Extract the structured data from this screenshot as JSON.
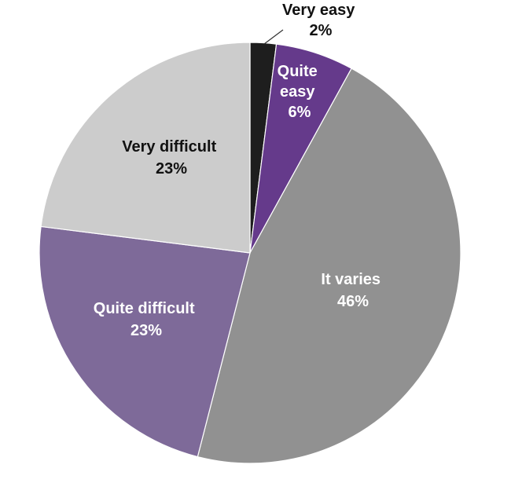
{
  "chart_data": {
    "type": "pie",
    "title": "",
    "slices": [
      {
        "label": "Very easy",
        "value": 2,
        "value_text": "2%",
        "color": "#1e1e1e"
      },
      {
        "label": "Quite easy",
        "value": 6,
        "value_text": "6%",
        "color": "#653a8b"
      },
      {
        "label": "It varies",
        "value": 46,
        "value_text": "46%",
        "color": "#919191"
      },
      {
        "label": "Quite difficult",
        "value": 23,
        "value_text": "23%",
        "color": "#7e6a99"
      },
      {
        "label": "Very difficult",
        "value": 23,
        "value_text": "23%",
        "color": "#cccccc"
      }
    ],
    "start": "12 o'clock",
    "direction": "clockwise",
    "legend": "none",
    "label_placement": "inside, except the smallest slice outside at top"
  }
}
